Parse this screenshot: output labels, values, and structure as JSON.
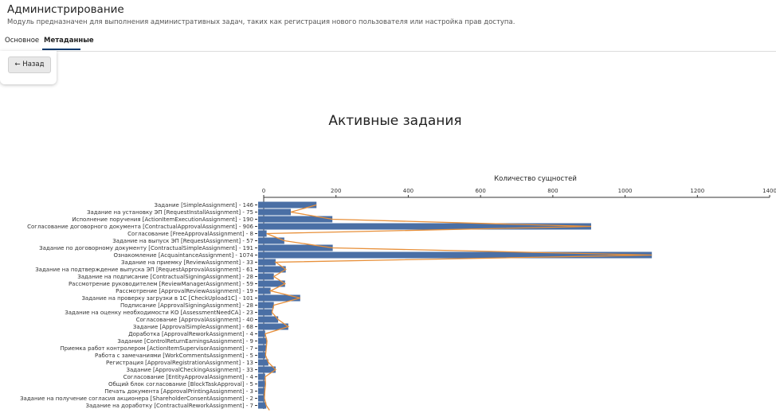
{
  "header": {
    "title": "Администрирование",
    "subtitle": "Модуль предназначен для выполнения административных задач, таких как регистрация нового пользователя или настройка прав доступа."
  },
  "tabs": [
    {
      "label": "Основное",
      "active": false
    },
    {
      "label": "Метаданные",
      "active": true
    }
  ],
  "back_button": {
    "label": "← Назад"
  },
  "colors": {
    "bar": "#4a6fa5",
    "line": "#e8903a",
    "tab_underline": "#0a3a6e"
  },
  "chart_data": {
    "type": "bar",
    "orientation": "horizontal",
    "title": "Активные задания",
    "xlabel": "Количество сущностей",
    "x_axis_position": "top",
    "xlim": [
      0,
      1400
    ],
    "xticks": [
      0,
      200,
      400,
      600,
      800,
      1000,
      1200,
      1400
    ],
    "grid": false,
    "overlay_line": true,
    "categories": [
      "Задание [SimpleAssignment] - 146",
      "Задание на установку ЭП [RequestInstallAssignment] - 75",
      "Исполнение поручения [ActionItemExecutionAssignment] - 190",
      "Согласование договорного документа [ContractualApprovalAssignment] - 906",
      "Согласование [FreeApprovalAssignment] - 8",
      "Задание на выпуск ЭП [RequestAssignment] - 57",
      "Задание по договорному документу [ContractualSimpleAssignment] - 191",
      "Ознакомление [AcquaintanceAssignment] - 1074",
      "Задание на приемку [ReviewAssignment] - 33",
      "Задание на подтверждение выпуска ЭП [RequestApprovalAssignment] - 61",
      "Задание на подписание [ContractualSigningAssignment] - 28",
      "Рассмотрение руководителем [ReviewManagerAssignment] - 59",
      "Рассмотрение [ApprovalReviewAssignment] - 19",
      "Задание на проверку загрузки в 1С [CheckUpload1C] - 101",
      "Подписание [ApprovalSigningAssignment] - 28",
      "Задание на оценку необходимости КО [AssessmentNeedCA] - 23",
      "Согласование [ApprovalAssignment] - 40",
      "Задание [ApprovalSimpleAssignment] - 68",
      "Доработка [ApprovalReworkAssignment] - 4",
      "Задание [ControlReturnEarningsAssignment] - 9",
      "Приемка работ контролером [ActionItemSupervisorAssignment] - 7",
      "Работа с замечаниями [WorkCommentsAssignment] - 5",
      "Регистрация [ApprovalRegistrationAssignment] - 13",
      "Задание [ApprovalCheckingAssignment] - 33",
      "Согласование [EntityApprovalAssignment] - 4",
      "Общий блок согласование [BlockTaskApproval] - 5",
      "Печать документа [ApprovalPrintingAssignment] - 3",
      "Задание на получение согласия акционера [ShareholderConsentAssignment] - 2",
      "Задание на доработку [ContractualReworkAssignment] - 7"
    ],
    "values": [
      146,
      75,
      190,
      906,
      8,
      57,
      191,
      1074,
      33,
      61,
      28,
      59,
      19,
      101,
      28,
      23,
      40,
      68,
      4,
      9,
      7,
      5,
      13,
      33,
      4,
      5,
      3,
      2,
      7
    ]
  }
}
